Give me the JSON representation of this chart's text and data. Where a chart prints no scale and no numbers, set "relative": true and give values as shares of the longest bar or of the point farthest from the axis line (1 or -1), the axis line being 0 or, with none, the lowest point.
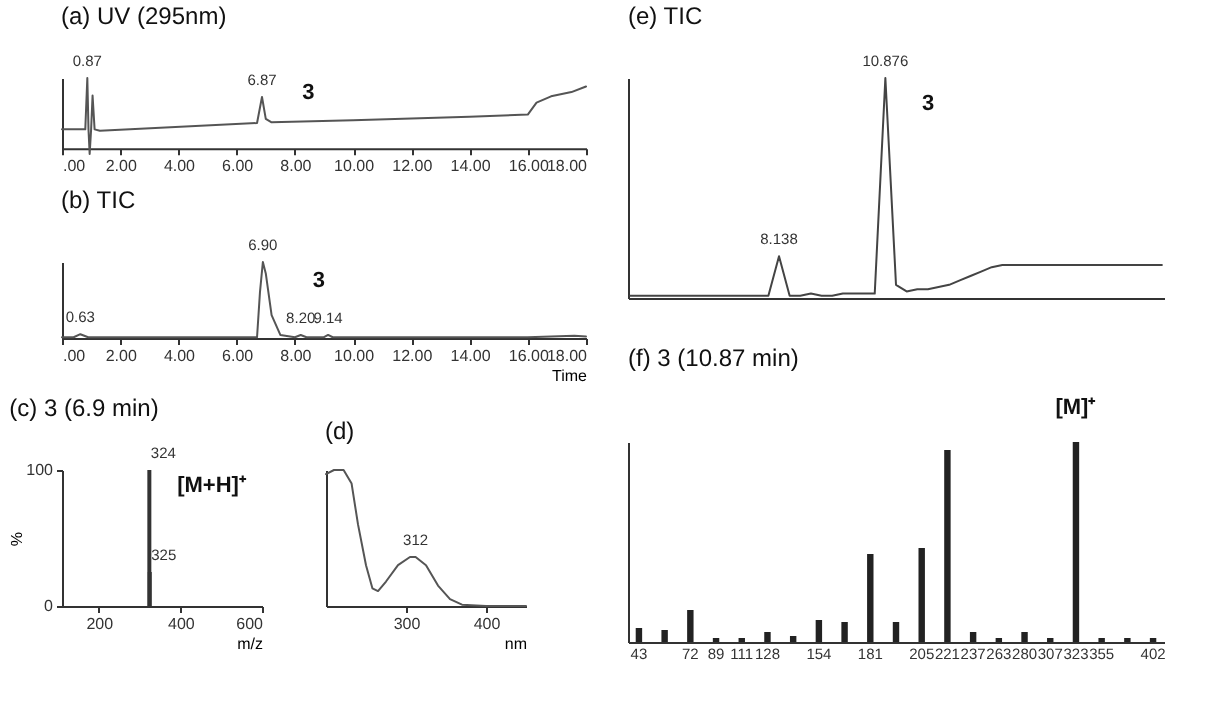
{
  "chart_data": [
    {
      "type": "line",
      "title": "(a)  UV  (295nm)",
      "color": "#555555",
      "relative": true,
      "x": [
        0,
        0.8,
        0.87,
        0.91,
        0.95,
        1.0,
        1.05,
        1.12,
        1.3,
        6.7,
        6.87,
        7.0,
        7.2,
        10,
        14,
        16,
        16.3,
        16.8,
        17.5,
        18
      ],
      "values": [
        0.27,
        0.27,
        1,
        0.27,
        -0.08,
        0.27,
        0.75,
        0.27,
        0.25,
        0.36,
        0.73,
        0.42,
        0.37,
        0.4,
        0.45,
        0.48,
        0.65,
        0.74,
        0.8,
        0.88
      ],
      "xlim": [
        0,
        18
      ],
      "xticks": [
        {
          "value": 0,
          "label": ".00"
        },
        {
          "value": 2,
          "label": "2.00"
        },
        {
          "value": 4,
          "label": "4.00"
        },
        {
          "value": 6,
          "label": "6.00"
        },
        {
          "value": 8,
          "label": "8.00"
        },
        {
          "value": 10,
          "label": "10.00"
        },
        {
          "value": 12,
          "label": "12.00"
        },
        {
          "value": 14,
          "label": "14.00"
        },
        {
          "value": 16,
          "label": "16.00"
        },
        {
          "value": 18,
          "label": "18.00"
        }
      ],
      "annotations": [
        {
          "text": "0.87",
          "x": 0.87,
          "y": 1
        },
        {
          "text": "6.87",
          "x": 6.87,
          "y": 0.73
        },
        "3"
      ]
    },
    {
      "type": "line",
      "title": "(b)  TIC",
      "color": "#555555",
      "relative": true,
      "xlabel": "Time",
      "x": [
        0,
        0.4,
        0.63,
        0.9,
        2,
        6.7,
        6.8,
        6.9,
        7.0,
        7.2,
        7.5,
        8.0,
        8.2,
        8.4,
        9.0,
        9.14,
        9.3,
        12,
        16,
        17.6,
        18
      ],
      "values": [
        0.01,
        0.01,
        0.05,
        0.01,
        0.01,
        0.01,
        0.6,
        1,
        0.85,
        0.3,
        0.04,
        0.01,
        0.04,
        0.01,
        0.01,
        0.04,
        0.01,
        0.01,
        0.01,
        0.03,
        0.02
      ],
      "xlim": [
        0,
        18
      ],
      "xticks": [
        {
          "value": 0,
          "label": ".00"
        },
        {
          "value": 2,
          "label": "2.00"
        },
        {
          "value": 4,
          "label": "4.00"
        },
        {
          "value": 6,
          "label": "6.00"
        },
        {
          "value": 8,
          "label": "8.00"
        },
        {
          "value": 10,
          "label": "10.00"
        },
        {
          "value": 12,
          "label": "12.00"
        },
        {
          "value": 14,
          "label": "14.00"
        },
        {
          "value": 16,
          "label": "16.00"
        },
        {
          "value": 18,
          "label": "18.00"
        }
      ],
      "annotations": [
        {
          "text": "0.63",
          "x": 0.63,
          "y": 0.05
        },
        {
          "text": "6.90",
          "x": 6.9,
          "y": 1
        },
        {
          "text": "8.20",
          "x": 8.2,
          "y": 0.04
        },
        {
          "text": "9.14",
          "x": 9.14,
          "y": 0.04
        },
        "3"
      ]
    },
    {
      "type": "bar",
      "title": "(c)  3 (6.9 min)",
      "color": "#333333",
      "xlabel": "m/z",
      "ylabel": "%",
      "x": [
        324,
        325
      ],
      "values": [
        100,
        25
      ],
      "xlim": [
        110,
        600
      ],
      "xticks": [
        200,
        400,
        600
      ],
      "ylim": [
        0,
        100
      ],
      "yticks": [
        0,
        100
      ],
      "annotations": [
        {
          "text": "324",
          "x": 324,
          "y": 100
        },
        {
          "text": "325",
          "x": 325,
          "y": 25
        },
        "[M+H]⁺"
      ]
    },
    {
      "type": "line",
      "title": "(d)",
      "color": "#555555",
      "relative": true,
      "xlabel": "nm",
      "x": [
        200,
        210,
        222,
        232,
        240,
        250,
        258,
        265,
        275,
        290,
        305,
        312,
        325,
        340,
        355,
        370,
        400,
        450
      ],
      "values": [
        0.97,
        1,
        1,
        0.9,
        0.6,
        0.3,
        0.13,
        0.11,
        0.18,
        0.3,
        0.36,
        0.36,
        0.3,
        0.15,
        0.05,
        0.01,
        0,
        0
      ],
      "xlim": [
        200,
        450
      ],
      "xticks": [
        300,
        400
      ],
      "annotations": [
        {
          "text": "312",
          "x": 312,
          "y": 0.36
        }
      ]
    },
    {
      "type": "line",
      "title": "(e)  TIC",
      "color": "#444444",
      "relative": true,
      "categories": [
        null,
        null,
        null,
        null,
        null,
        null,
        null,
        null,
        null,
        null,
        null,
        null,
        null,
        null,
        null,
        null,
        null,
        null,
        null,
        null,
        null,
        null,
        null,
        null,
        null,
        null,
        null,
        null,
        null,
        null,
        null,
        null,
        null,
        null,
        null,
        null,
        null,
        null,
        null,
        null,
        null,
        null,
        null,
        null,
        null,
        null,
        null,
        null,
        null,
        null,
        null
      ],
      "values": [
        0.01,
        0.01,
        0.01,
        0.01,
        0.01,
        0.01,
        0.01,
        0.01,
        0.01,
        0.01,
        0.01,
        0.01,
        0.01,
        0.01,
        0.19,
        0.01,
        0.01,
        0.02,
        0.01,
        0.01,
        0.02,
        0.02,
        0.02,
        0.02,
        1,
        0.06,
        0.03,
        0.04,
        0.04,
        0.05,
        0.06,
        0.08,
        0.1,
        0.12,
        0.14,
        0.15,
        0.15,
        0.15,
        0.15,
        0.15,
        0.15,
        0.15,
        0.15,
        0.15,
        0.15,
        0.15,
        0.15,
        0.15,
        0.15,
        0.15,
        0.15
      ],
      "annotations": [
        "8.138",
        "10.876",
        "3"
      ]
    },
    {
      "type": "bar",
      "title": "(f)   3   (10.87 min)",
      "color": "#222222",
      "relative": true,
      "categories": [
        "43",
        null,
        "72",
        "89",
        "111",
        "128",
        null,
        "154",
        null,
        "181",
        null,
        "205",
        "221",
        "237",
        "263",
        "280",
        "307",
        "323",
        "355",
        null,
        "402"
      ],
      "values": [
        0.07,
        0.06,
        0.16,
        0.02,
        0.02,
        0.05,
        0.03,
        0.11,
        0.1,
        0.44,
        0.1,
        0.47,
        0.96,
        0.05,
        0.02,
        0.05,
        0.02,
        1,
        0.02,
        0.02,
        0.02
      ],
      "annotations": [
        "[M]⁺"
      ]
    }
  ]
}
